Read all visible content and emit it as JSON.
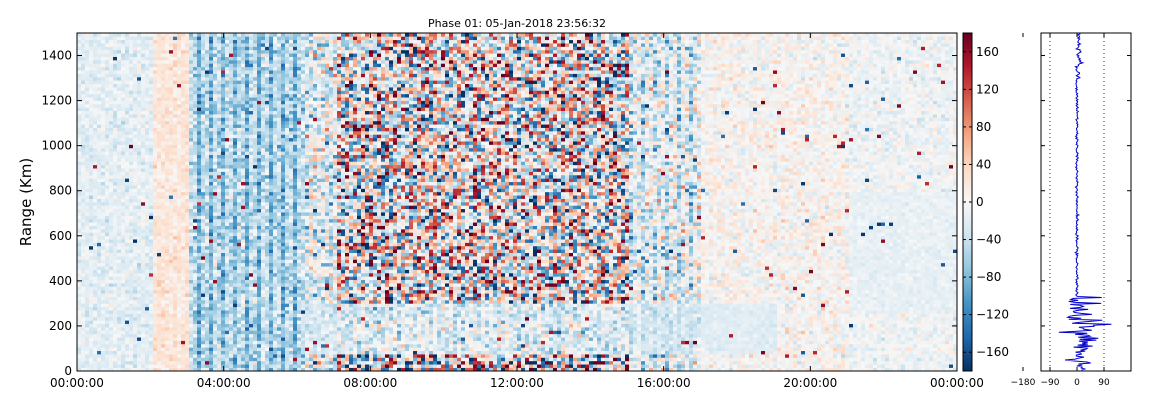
{
  "chart_data": [
    {
      "type": "heatmap",
      "title": "Phase 01: 05-Jan-2018 23:56:32",
      "xlabel": "",
      "ylabel": "Range (Km)",
      "x_ticks": [
        "00:00:00",
        "04:00:00",
        "08:00:00",
        "12:00:00",
        "16:00:00",
        "20:00:00",
        "00:00:00"
      ],
      "x_range_hours": [
        0,
        24
      ],
      "y_ticks": [
        0,
        200,
        400,
        600,
        800,
        1000,
        1200,
        1400
      ],
      "ylim": [
        0,
        1500
      ],
      "colormap": "RdBu_r",
      "colorbar": {
        "range": [
          -180,
          180
        ],
        "ticks": [
          160,
          120,
          80,
          40,
          0,
          -40,
          -80,
          -120,
          -160
        ],
        "colors": [
          "#053061",
          "#2166ac",
          "#4393c3",
          "#92c5de",
          "#d1e5f0",
          "#f7f7f7",
          "#fddbc7",
          "#f4a582",
          "#d6604d",
          "#b2182b",
          "#67001f"
        ]
      },
      "grid": false
    },
    {
      "type": "line",
      "title": "",
      "xlabel": "",
      "ylabel": "",
      "x_ticks": [
        -180,
        -90,
        0,
        90
      ],
      "x_tick_labels": [
        "−180",
        "−90",
        "0",
        "90"
      ],
      "xlim": [
        -120,
        180
      ],
      "ylim": [
        0,
        1500
      ],
      "series_color": "#0000cc",
      "gridlines_x": [
        -90,
        90
      ],
      "profile_summary": [
        {
          "range": [
            0,
            100
          ],
          "center": 5,
          "spread": 45
        },
        {
          "range": [
            100,
            330
          ],
          "center": 12,
          "spread": 60
        },
        {
          "range": [
            330,
            1300
          ],
          "center": 0,
          "spread": 5
        },
        {
          "range": [
            1300,
            1500
          ],
          "center": 5,
          "spread": 12
        }
      ]
    }
  ]
}
